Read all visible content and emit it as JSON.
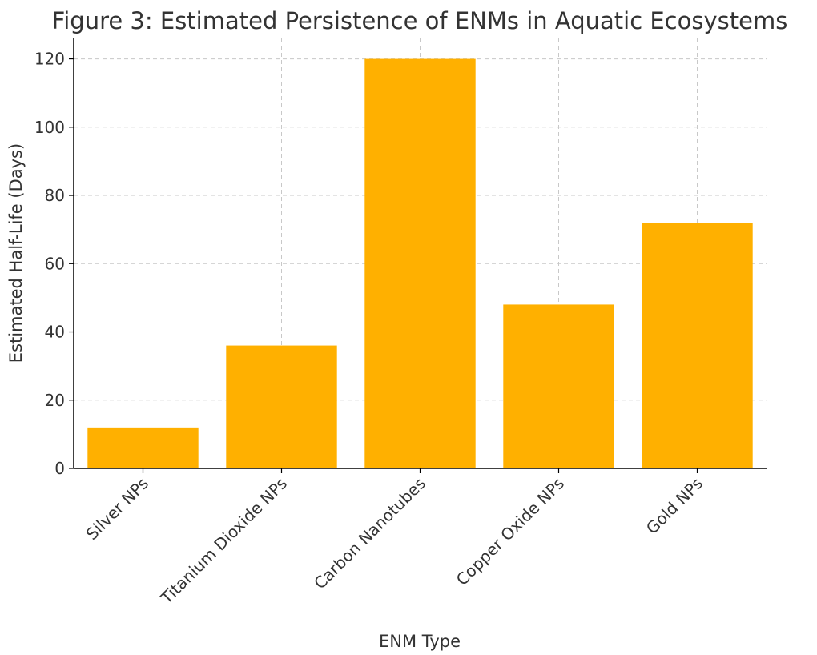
{
  "chart_data": {
    "type": "bar",
    "title": "Figure 3: Estimated Persistence of ENMs in Aquatic Ecosystems",
    "xlabel": "ENM Type",
    "ylabel": "Estimated Half-Life (Days)",
    "categories": [
      "Silver NPs",
      "Titanium Dioxide NPs",
      "Carbon Nanotubes",
      "Copper Oxide NPs",
      "Gold NPs"
    ],
    "values": [
      12,
      36,
      120,
      48,
      72
    ],
    "ylim": [
      0,
      126
    ],
    "yticks": [
      0,
      20,
      40,
      60,
      80,
      100,
      120
    ],
    "grid": true,
    "legend": "none",
    "colors": {
      "bar": "#FFB000"
    }
  }
}
